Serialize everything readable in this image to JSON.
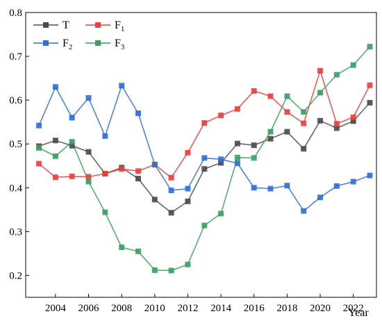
{
  "chart_data": {
    "type": "line",
    "title": "",
    "xlabel": "Year",
    "ylabel": "",
    "xlim": [
      2002.2,
      2023.4
    ],
    "ylim": [
      0.15,
      0.8
    ],
    "grid": false,
    "legend_position": "top-left",
    "x_ticks": [
      2004,
      2006,
      2008,
      2010,
      2012,
      2014,
      2016,
      2018,
      2020,
      2022
    ],
    "x_tick_labels": [
      "2004",
      "2006",
      "2008",
      "2010",
      "2012",
      "2014",
      "2016",
      "2018",
      "2020",
      "2022"
    ],
    "y_ticks": [
      0.2,
      0.3,
      0.4,
      0.5,
      0.6,
      0.7,
      0.8
    ],
    "y_tick_labels": [
      "0.2",
      "0.3",
      "0.4",
      "0.5",
      "0.6",
      "0.7",
      "0.8"
    ],
    "x": [
      2003,
      2004,
      2005,
      2006,
      2007,
      2008,
      2009,
      2010,
      2011,
      2012,
      2013,
      2014,
      2015,
      2016,
      2017,
      2018,
      2019,
      2020,
      2021,
      2022,
      2023
    ],
    "series": [
      {
        "name": "T",
        "name_main": "T",
        "name_sub": "",
        "color": "#4a4a4a",
        "marker_color": "#4a4a4a",
        "values": [
          0.495,
          0.508,
          0.496,
          0.482,
          0.432,
          0.446,
          0.421,
          0.373,
          0.343,
          0.369,
          0.443,
          0.457,
          0.501,
          0.497,
          0.512,
          0.528,
          0.489,
          0.553,
          0.536,
          0.552,
          0.594
        ]
      },
      {
        "name": "F1",
        "name_main": "F",
        "name_sub": "1",
        "color": "#e8403c",
        "marker_color": "#e8403c",
        "values": [
          0.455,
          0.424,
          0.426,
          0.425,
          0.432,
          0.443,
          0.438,
          0.453,
          0.423,
          0.48,
          0.548,
          0.565,
          0.58,
          0.621,
          0.609,
          0.573,
          0.547,
          0.667,
          0.546,
          0.561,
          0.634
        ]
      },
      {
        "name": "F2",
        "name_main": "F",
        "name_sub": "2",
        "color": "#2f6ed6",
        "marker_color": "#2f6ed6",
        "values": [
          0.542,
          0.63,
          0.56,
          0.605,
          0.518,
          0.633,
          0.57,
          0.453,
          0.394,
          0.398,
          0.468,
          0.465,
          0.456,
          0.4,
          0.398,
          0.405,
          0.347,
          0.378,
          0.404,
          0.414,
          0.428
        ]
      },
      {
        "name": "F3",
        "name_main": "F",
        "name_sub": "3",
        "color": "#3a9e63",
        "marker_color": "#3a9e63",
        "values": [
          0.491,
          0.472,
          0.505,
          0.414,
          0.344,
          0.264,
          0.255,
          0.212,
          0.211,
          0.225,
          0.314,
          0.341,
          0.469,
          0.468,
          0.528,
          0.609,
          0.573,
          0.617,
          0.658,
          0.68,
          0.722
        ]
      }
    ]
  }
}
